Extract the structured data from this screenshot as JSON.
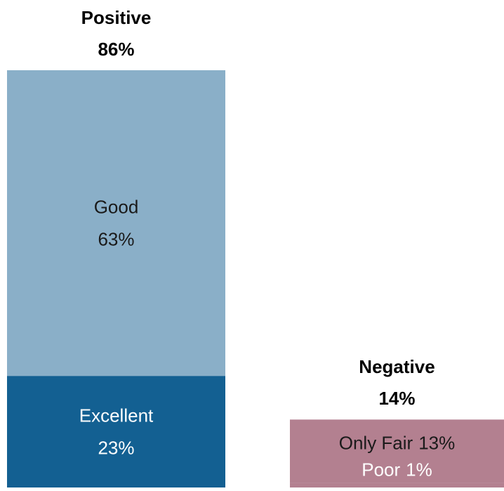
{
  "chart_data": {
    "type": "stacked_bar",
    "categories": [
      "Positive",
      "Negative"
    ],
    "totals": [
      86,
      14
    ],
    "total_value_labels": [
      "86%",
      "14%"
    ],
    "series": [
      {
        "name": "Excellent",
        "color": "#136092",
        "label_color": "#ffffff",
        "values": [
          23,
          null
        ],
        "value_labels": [
          "23%",
          null
        ]
      },
      {
        "name": "Good",
        "color": "#8aafc8",
        "label_color": "#1a1a1a",
        "values": [
          63,
          null
        ],
        "value_labels": [
          "63%",
          null
        ]
      },
      {
        "name": "Poor",
        "color": "#b38090",
        "label_color": "#ffffff",
        "values": [
          null,
          1
        ],
        "value_labels": [
          null,
          "1%"
        ]
      },
      {
        "name": "Only Fair",
        "color": "#b38090",
        "label_color": "#1a1a1a",
        "values": [
          null,
          13
        ],
        "value_labels": [
          null,
          "13%"
        ]
      }
    ]
  }
}
